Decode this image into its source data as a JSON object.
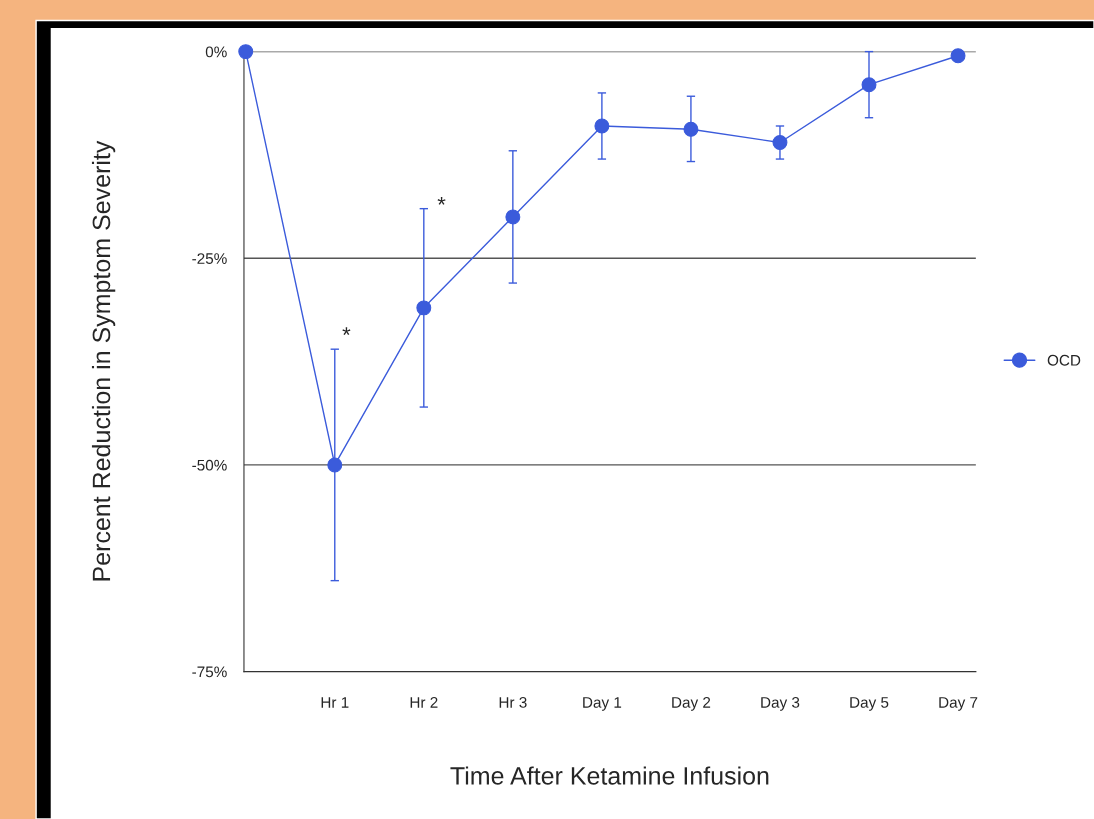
{
  "chart_data": {
    "type": "line",
    "xlabel": "Time After Ketamine Infusion",
    "ylabel": "Percent Reduction in Symptom Severity",
    "categories": [
      null,
      "Hr 1",
      "Hr 2",
      "Hr 3",
      "Day 1",
      "Day 2",
      "Day 3",
      "Day 5",
      "Day 7"
    ],
    "series": [
      {
        "name": "OCD",
        "color": "#3b5bdb",
        "values": [
          0,
          -50,
          -31,
          -20,
          -9,
          -9.4,
          -11,
          -4,
          -0.5
        ],
        "errors": [
          null,
          [
            -64,
            -36
          ],
          [
            -43,
            -19
          ],
          [
            -28,
            -12
          ],
          [
            -13,
            -5
          ],
          [
            -13.3,
            -5.4
          ],
          [
            -13,
            -9
          ],
          [
            -8,
            0
          ],
          null
        ]
      }
    ],
    "ylim": [
      -75,
      0
    ],
    "yticks": [
      {
        "value": -75,
        "label": "-75%"
      },
      {
        "value": -50,
        "label": "-50%"
      },
      {
        "value": -25,
        "label": "-25%"
      },
      {
        "value": 0,
        "label": "0%"
      }
    ],
    "annotations": [
      "*",
      "*"
    ],
    "grid": "y",
    "legend": "right",
    "marker": "circle",
    "line_style": "solid"
  }
}
